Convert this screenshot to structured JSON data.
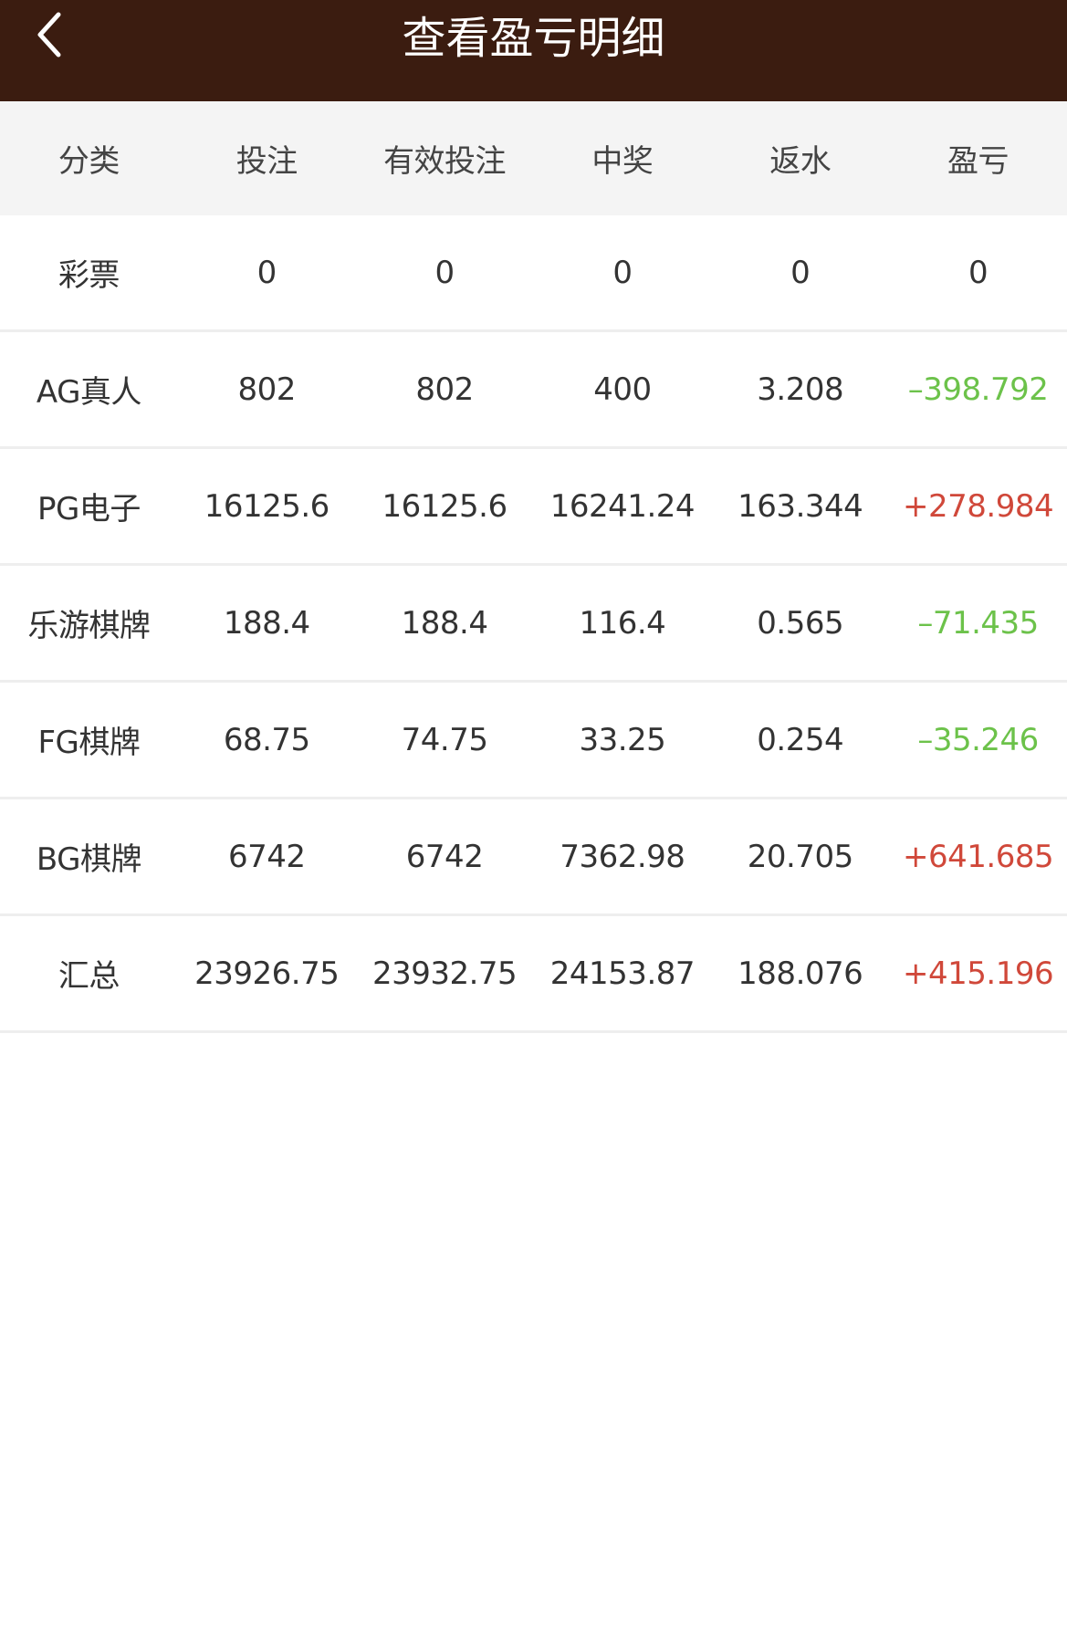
{
  "header": {
    "title": "查看盈亏明细",
    "back_icon": "chevron-left-icon"
  },
  "colors": {
    "header_bg": "#3b1c10",
    "loss": "#6cc24a",
    "profit": "#d0483a"
  },
  "table": {
    "columns": [
      "分类",
      "投注",
      "有效投注",
      "中奖",
      "返水",
      "盈亏"
    ],
    "rows": [
      [
        "彩票",
        "0",
        "0",
        "0",
        "0",
        "0"
      ],
      [
        "AG真人",
        "802",
        "802",
        "400",
        "3.208",
        "–398.792"
      ],
      [
        "PG电子",
        "16125.6",
        "16125.6",
        "16241.24",
        "163.344",
        "+278.984"
      ],
      [
        "乐游棋牌",
        "188.4",
        "188.4",
        "116.4",
        "0.565",
        "–71.435"
      ],
      [
        "FG棋牌",
        "68.75",
        "74.75",
        "33.25",
        "0.254",
        "–35.246"
      ],
      [
        "BG棋牌",
        "6742",
        "6742",
        "7362.98",
        "20.705",
        "+641.685"
      ],
      [
        "汇总",
        "23926.75",
        "23932.75",
        "24153.87",
        "188.076",
        "+415.196"
      ]
    ]
  }
}
